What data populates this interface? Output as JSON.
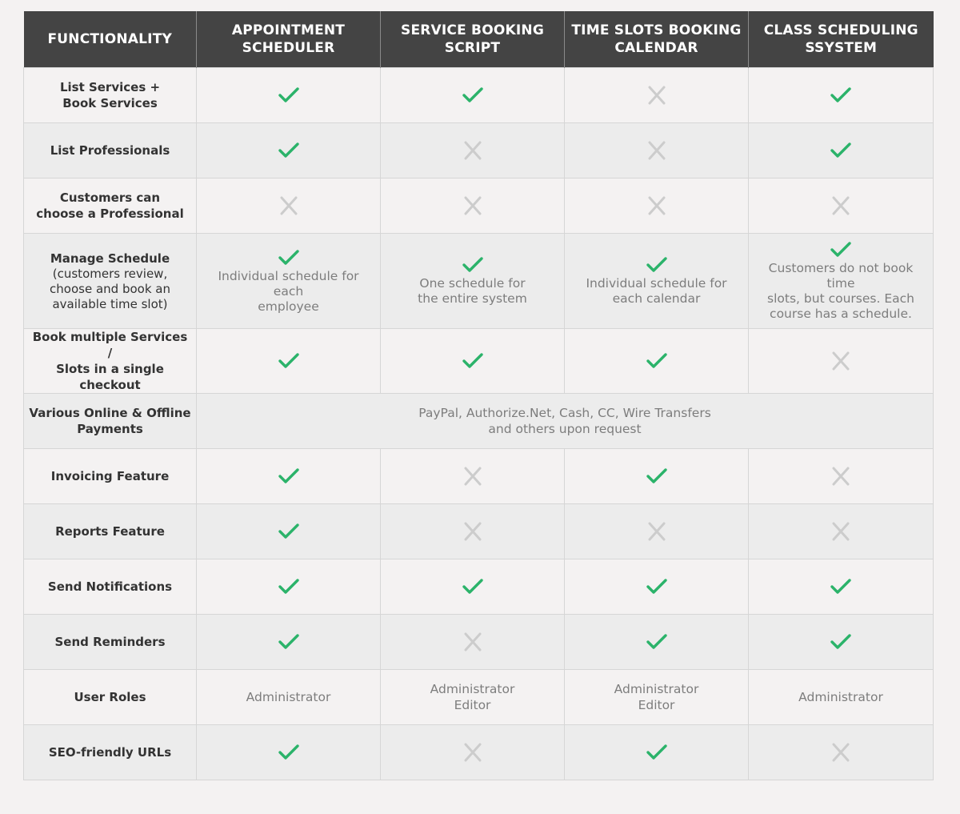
{
  "colors": {
    "header_bg": "#444444",
    "header_text": "#ffffff",
    "check": "#2bb36a",
    "cross": "#cccccc",
    "row_odd": "#f4f2f2",
    "row_even": "#ececec"
  },
  "icons": {
    "yes": "check-icon",
    "no": "cross-icon"
  },
  "header": {
    "functionality": "FUNCTIONALITY",
    "col1": "APPOINTMENT\nSCHEDULER",
    "col2": "SERVICE BOOKING\nSCRIPT",
    "col3": "TIME SLOTS BOOKING\nCALENDAR",
    "col4": "CLASS SCHEDULING\nSSYSTEM"
  },
  "rows": [
    {
      "feature": "List Services +\nBook Services",
      "cells": [
        {
          "mark": "yes"
        },
        {
          "mark": "yes"
        },
        {
          "mark": "no"
        },
        {
          "mark": "yes"
        }
      ]
    },
    {
      "feature": "List Professionals",
      "cells": [
        {
          "mark": "yes"
        },
        {
          "mark": "no"
        },
        {
          "mark": "no"
        },
        {
          "mark": "yes"
        }
      ]
    },
    {
      "feature": "Customers can\nchoose a Professional",
      "cells": [
        {
          "mark": "no"
        },
        {
          "mark": "no"
        },
        {
          "mark": "no"
        },
        {
          "mark": "no"
        }
      ]
    },
    {
      "feature": "Manage Schedule",
      "feature_sub": "(customers review,\nchoose and book an\navailable time slot)",
      "cells": [
        {
          "mark": "yes",
          "note": "Individual schedule for each\nemployee"
        },
        {
          "mark": "yes",
          "note": "One schedule for\nthe entire system"
        },
        {
          "mark": "yes",
          "note": "Individual schedule for\neach calendar"
        },
        {
          "mark": "yes",
          "note": "Customers do not book time\nslots, but courses. Each\ncourse has a schedule."
        }
      ]
    },
    {
      "feature": "Book multiple Services /\nSlots in a single checkout",
      "cells": [
        {
          "mark": "yes"
        },
        {
          "mark": "yes"
        },
        {
          "mark": "yes"
        },
        {
          "mark": "no"
        }
      ]
    },
    {
      "feature": "Various Online & Offline\nPayments",
      "span_text": "PayPal, Authorize.Net, Cash, CC, Wire Transfers\nand others upon request"
    },
    {
      "feature": "Invoicing Feature",
      "cells": [
        {
          "mark": "yes"
        },
        {
          "mark": "no"
        },
        {
          "mark": "yes"
        },
        {
          "mark": "no"
        }
      ]
    },
    {
      "feature": "Reports Feature",
      "cells": [
        {
          "mark": "yes"
        },
        {
          "mark": "no"
        },
        {
          "mark": "no"
        },
        {
          "mark": "no"
        }
      ]
    },
    {
      "feature": "Send Notifications",
      "cells": [
        {
          "mark": "yes"
        },
        {
          "mark": "yes"
        },
        {
          "mark": "yes"
        },
        {
          "mark": "yes"
        }
      ]
    },
    {
      "feature": "Send Reminders",
      "cells": [
        {
          "mark": "yes"
        },
        {
          "mark": "no"
        },
        {
          "mark": "yes"
        },
        {
          "mark": "yes"
        }
      ]
    },
    {
      "feature": "User Roles",
      "cells": [
        {
          "text": "Administrator"
        },
        {
          "text": "Administrator\nEditor"
        },
        {
          "text": "Administrator\nEditor"
        },
        {
          "text": "Administrator"
        }
      ]
    },
    {
      "feature": "SEO-friendly URLs",
      "cells": [
        {
          "mark": "yes"
        },
        {
          "mark": "no"
        },
        {
          "mark": "yes"
        },
        {
          "mark": "no"
        }
      ]
    }
  ]
}
